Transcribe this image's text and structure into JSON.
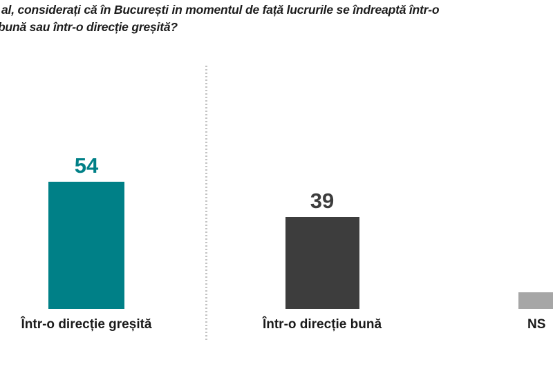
{
  "question": {
    "line1": "al, considerați că în București in momentul de față lucrurile se îndreaptă într-o",
    "line2": "bună sau într-o direcție greșită?"
  },
  "chart_data": {
    "type": "bar",
    "title": "al, considerați că în București in momentul de față lucrurile se îndreaptă într-o bună sau într-o direcție greșită? (question clipped at left edge)",
    "categories": [
      "Într-o direcție greșită",
      "Într-o direcție bună",
      "NS"
    ],
    "values": [
      54,
      39,
      7
    ],
    "value_labels": [
      "54",
      "39",
      ""
    ],
    "bar_colors": [
      "#008087",
      "#3d3d3d",
      "#a6a6a6"
    ],
    "value_label_colors": [
      "#008087",
      "#3d3d3d",
      "#3d3d3d"
    ],
    "xlabel": "",
    "ylabel": "",
    "ylim": [
      0,
      60
    ],
    "grid": false,
    "axis_visible": false,
    "legend": "none",
    "layout_notes": {
      "separator_color": "#c4c4c4",
      "separator_style": "dotted-vertical",
      "third_bar_clipped_at_right_edge": true,
      "third_value_label_not_visible": true
    }
  }
}
